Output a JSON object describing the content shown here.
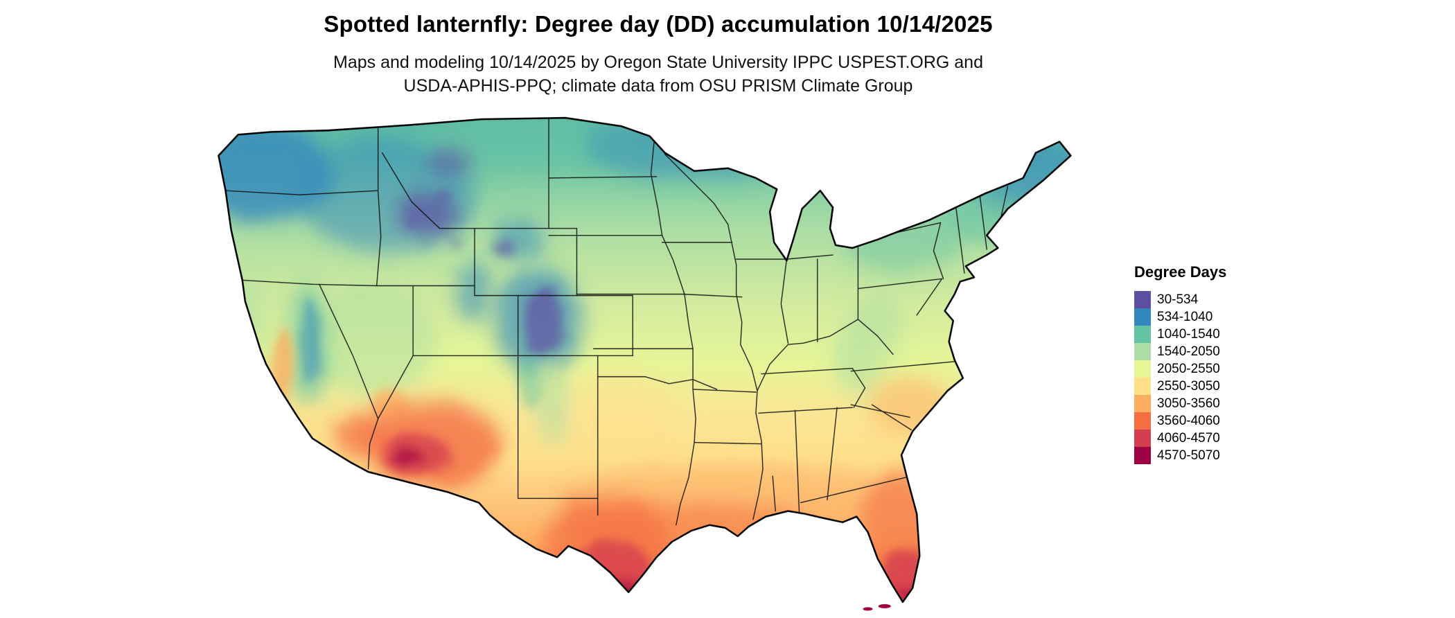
{
  "title": "Spotted lanternfly: Degree day (DD) accumulation 10/14/2025",
  "subtitle_line1": "Maps and modeling 10/14/2025 by Oregon State University IPPC USPEST.ORG and",
  "subtitle_line2": "USDA-APHIS-PPQ; climate data from OSU PRISM Climate Group",
  "map": {
    "region": "Contiguous United States",
    "kind": "degree-day accumulation raster map"
  },
  "legend": {
    "title": "Degree Days",
    "items": [
      {
        "range": "30-534",
        "color": "#5e4fa2"
      },
      {
        "range": "534-1040",
        "color": "#3288bd"
      },
      {
        "range": "1040-1540",
        "color": "#66c2a5"
      },
      {
        "range": "1540-2050",
        "color": "#abdda4"
      },
      {
        "range": "2050-2550",
        "color": "#e6f598"
      },
      {
        "range": "2550-3050",
        "color": "#fee08b"
      },
      {
        "range": "3050-3560",
        "color": "#fdae61"
      },
      {
        "range": "3560-4060",
        "color": "#f46d43"
      },
      {
        "range": "4060-4570",
        "color": "#d53e4f"
      },
      {
        "range": "4570-5070",
        "color": "#9e0142"
      }
    ]
  }
}
